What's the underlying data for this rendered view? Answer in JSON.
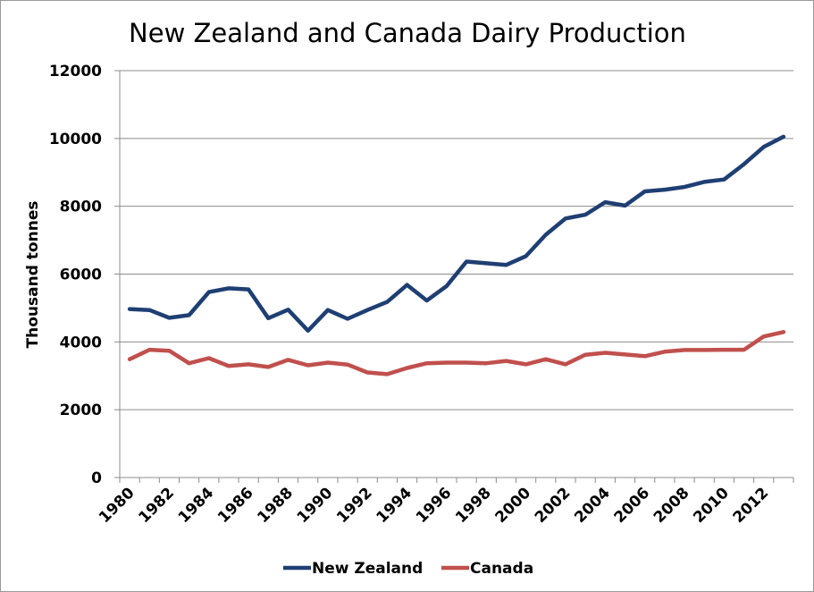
{
  "chart_data": {
    "type": "line",
    "title": "New Zealand  and Canada Dairy Production",
    "xlabel": "",
    "ylabel": "Thousand tonnes",
    "ylim": [
      0,
      12000
    ],
    "yticks": [
      0,
      2000,
      4000,
      6000,
      8000,
      10000,
      12000
    ],
    "xtick_labels": [
      "1980",
      "1982",
      "1984",
      "1986",
      "1988",
      "1990",
      "1992",
      "1994",
      "1996",
      "1998",
      "2000",
      "2002",
      "2004",
      "2006",
      "2008",
      "2010",
      "2012"
    ],
    "x": [
      1980,
      1981,
      1982,
      1983,
      1984,
      1985,
      1986,
      1987,
      1988,
      1989,
      1990,
      1991,
      1992,
      1993,
      1994,
      1995,
      1996,
      1997,
      1998,
      1999,
      2000,
      2001,
      2002,
      2003,
      2004,
      2005,
      2006,
      2007,
      2008,
      2009,
      2010,
      2011,
      2012,
      2013
    ],
    "grid": "horizontal",
    "legend_position": "bottom",
    "series": [
      {
        "name": "New Zealand",
        "color": "#1f3f73",
        "values": [
          4970,
          4940,
          4710,
          4790,
          5470,
          5580,
          5550,
          4700,
          4950,
          4330,
          4940,
          4680,
          4940,
          5180,
          5680,
          5220,
          5650,
          6370,
          6320,
          6270,
          6530,
          7160,
          7640,
          7750,
          8120,
          8020,
          8440,
          8490,
          8570,
          8720,
          8790,
          9240,
          9750,
          10050
        ]
      },
      {
        "name": "Canada",
        "color": "#c0504d",
        "values": [
          3490,
          3770,
          3740,
          3370,
          3520,
          3290,
          3340,
          3260,
          3470,
          3310,
          3390,
          3330,
          3100,
          3050,
          3230,
          3370,
          3390,
          3390,
          3370,
          3440,
          3340,
          3490,
          3340,
          3620,
          3680,
          3630,
          3580,
          3710,
          3760,
          3760,
          3770,
          3770,
          4160,
          4290
        ]
      }
    ]
  }
}
